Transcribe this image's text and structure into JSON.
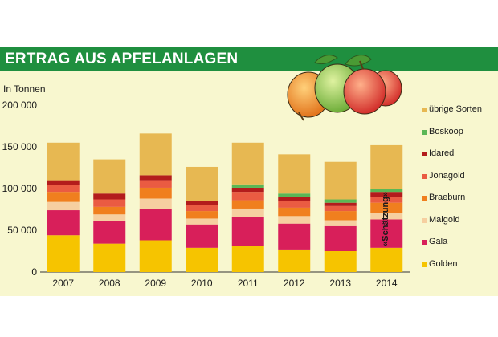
{
  "title": "ERTRAG AUS APFELANLAGEN",
  "colors": {
    "banner": "#1f8f3f",
    "panel": "#f8f7cf"
  },
  "chart_data": {
    "type": "bar",
    "stacked": true,
    "unit_label": "In Tonnen",
    "categories": [
      "2007",
      "2008",
      "2009",
      "2010",
      "2011",
      "2012",
      "2013",
      "2014"
    ],
    "ylim": [
      0,
      200000
    ],
    "yticks": [
      "0",
      "50 000",
      "100 000",
      "150 000",
      "200 000"
    ],
    "ytick_values": [
      0,
      50000,
      100000,
      150000,
      200000
    ],
    "grid": false,
    "legend_position": "right",
    "annotation": "«Schätzung»",
    "annotated_category": "2014",
    "series": [
      {
        "name": "Golden",
        "color": "#f6c400",
        "values": [
          44000,
          34000,
          38000,
          29000,
          31000,
          27000,
          25000,
          29000
        ]
      },
      {
        "name": "Gala",
        "color": "#d81f5a",
        "values": [
          30000,
          27000,
          38000,
          28000,
          35000,
          31000,
          30000,
          34000
        ]
      },
      {
        "name": "Maigold",
        "color": "#f6cfa0",
        "values": [
          10000,
          8000,
          12000,
          7000,
          10000,
          9000,
          7000,
          8000
        ]
      },
      {
        "name": "Braeburn",
        "color": "#f07f1e",
        "values": [
          12000,
          9000,
          13000,
          9000,
          10000,
          10000,
          11000,
          12000
        ]
      },
      {
        "name": "Jonagold",
        "color": "#ea5b42",
        "values": [
          8000,
          9000,
          9000,
          7000,
          10000,
          8000,
          6000,
          7000
        ]
      },
      {
        "name": "Idared",
        "color": "#b31c1c",
        "values": [
          6000,
          7000,
          6000,
          5000,
          5000,
          5000,
          4000,
          6000
        ]
      },
      {
        "name": "Boskoop",
        "color": "#5bb755",
        "values": [
          0,
          0,
          0,
          0,
          4000,
          4000,
          4000,
          4000
        ]
      },
      {
        "name": "übrige Sorten",
        "color": "#e7b852",
        "values": [
          45000,
          41000,
          50000,
          41000,
          50000,
          47000,
          45000,
          52000
        ]
      }
    ]
  }
}
